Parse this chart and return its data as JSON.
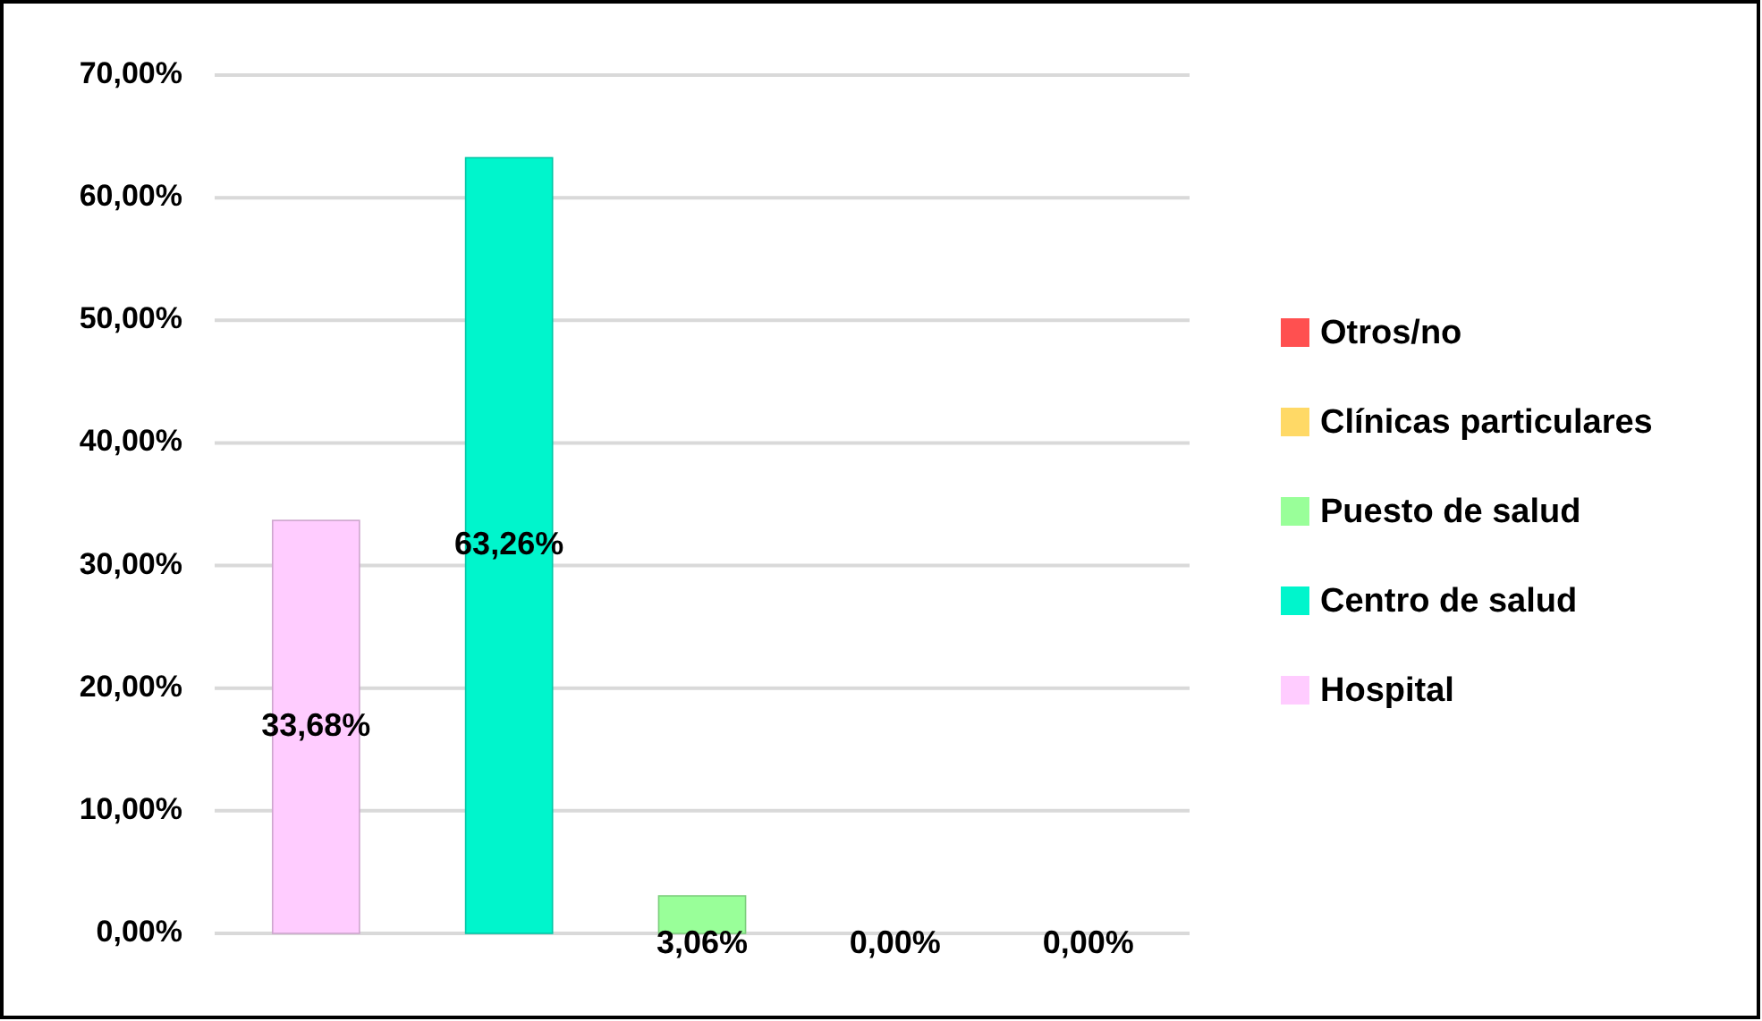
{
  "chart_data": {
    "type": "bar",
    "categories": [
      null,
      null,
      null,
      null,
      null
    ],
    "series": [
      {
        "name": "Hospital",
        "color": "#ffccff",
        "values": [
          33.68,
          null,
          null,
          null,
          null
        ],
        "value_labels": [
          "33,68%",
          null,
          null,
          null,
          null
        ]
      },
      {
        "name": "Centro de salud",
        "color": "#00f5cc",
        "values": [
          null,
          63.26,
          null,
          null,
          null
        ],
        "value_labels": [
          null,
          "63,26%",
          null,
          null,
          null
        ]
      },
      {
        "name": "Puesto de salud",
        "color": "#99ff99",
        "values": [
          null,
          null,
          3.06,
          null,
          null
        ],
        "value_labels": [
          null,
          null,
          "3,06%",
          null,
          null
        ]
      },
      {
        "name": "Clínicas particulares",
        "color": "#ffd966",
        "values": [
          null,
          null,
          null,
          0,
          null
        ],
        "value_labels": [
          null,
          null,
          null,
          "0,00%",
          null
        ]
      },
      {
        "name": "Otros/no",
        "color": "#ff5050",
        "values": [
          null,
          null,
          null,
          null,
          0
        ],
        "value_labels": [
          null,
          null,
          null,
          null,
          "0,00%"
        ]
      }
    ],
    "ylim": [
      0,
      70
    ],
    "yticks": [
      {
        "value": 0,
        "label": "0,00%"
      },
      {
        "value": 10,
        "label": "10,00%"
      },
      {
        "value": 20,
        "label": "20,00%"
      },
      {
        "value": 30,
        "label": "30,00%"
      },
      {
        "value": 40,
        "label": "40,00%"
      },
      {
        "value": 50,
        "label": "50,00%"
      },
      {
        "value": 60,
        "label": "60,00%"
      },
      {
        "value": 70,
        "label": "70,00%"
      }
    ],
    "grid": true,
    "legend": "right"
  }
}
